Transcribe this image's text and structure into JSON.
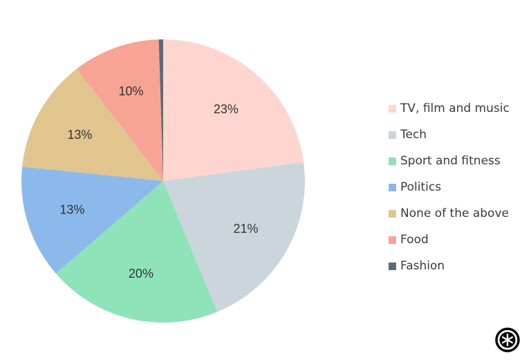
{
  "chart_data": {
    "type": "pie",
    "title": "",
    "series": [
      {
        "name": "TV, film and music",
        "value": 23,
        "label": "23%",
        "color": "#ffd6cf"
      },
      {
        "name": "Tech",
        "value": 21,
        "label": "21%",
        "color": "#cbd5dc"
      },
      {
        "name": "Sport and fitness",
        "value": 20,
        "label": "20%",
        "color": "#8ee3b9"
      },
      {
        "name": "Politics",
        "value": 13,
        "label": "13%",
        "color": "#8bb9ec"
      },
      {
        "name": "None of the above",
        "value": 13,
        "label": "13%",
        "color": "#e1c58f"
      },
      {
        "name": "Food",
        "value": 10,
        "label": "10%",
        "color": "#f7a494"
      },
      {
        "name": "Fashion",
        "value": 0.5,
        "label": "",
        "color": "#5b6c7a"
      }
    ],
    "legend_position": "right"
  },
  "logo_icon": "asterisk-circle-logo-icon"
}
